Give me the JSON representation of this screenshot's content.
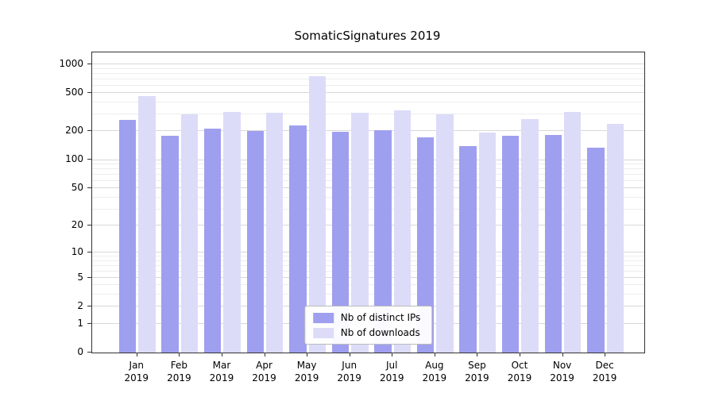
{
  "title": "SomaticSignatures 2019",
  "colors": {
    "distinct_ips": "#9f9ff0",
    "downloads": "#dcdcf9",
    "grid_major": "#d8d8d8",
    "grid_minor": "#ededed",
    "axis": "#333333",
    "background": "#ffffff"
  },
  "legend": {
    "items": [
      {
        "key": "distinct_ips",
        "label": "Nb of distinct IPs"
      },
      {
        "key": "downloads",
        "label": "Nb of downloads"
      }
    ]
  },
  "chart_data": {
    "type": "bar",
    "title": "SomaticSignatures 2019",
    "x_tick_year": "2019",
    "categories": [
      "Jan",
      "Feb",
      "Mar",
      "Apr",
      "May",
      "Jun",
      "Jul",
      "Aug",
      "Sep",
      "Oct",
      "Nov",
      "Dec"
    ],
    "series": [
      {
        "name": "Nb of distinct IPs",
        "color_key": "distinct_ips",
        "values": [
          262,
          178,
          214,
          201,
          230,
          198,
          206,
          172,
          140,
          178,
          184,
          135
        ]
      },
      {
        "name": "Nb of downloads",
        "color_key": "downloads",
        "values": [
          470,
          300,
          318,
          310,
          750,
          312,
          330,
          298,
          195,
          270,
          320,
          240
        ]
      }
    ],
    "yscale": "log10(value+1)",
    "yticks": [
      0,
      1,
      2,
      5,
      10,
      20,
      50,
      100,
      200,
      500,
      1000
    ],
    "yticks_minor": [
      3,
      4,
      6,
      7,
      8,
      9,
      30,
      40,
      60,
      70,
      80,
      90,
      300,
      400,
      600,
      700,
      800,
      900
    ],
    "ylim_top": 1330,
    "grid": true,
    "legend_position": "lower center"
  }
}
